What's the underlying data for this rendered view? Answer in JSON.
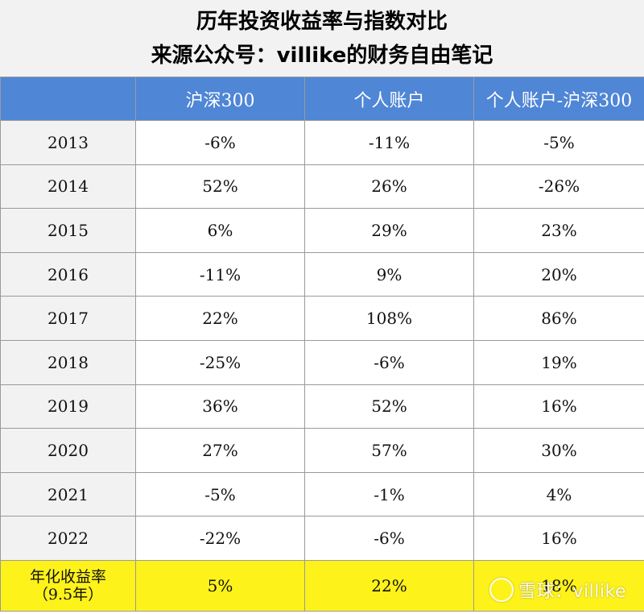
{
  "title": {
    "line1": "历年投资收益率与指数对比",
    "line2": "来源公众号：villike的财务自由笔记"
  },
  "chart_data": {
    "type": "table",
    "columns": [
      "",
      "沪深300",
      "个人账户",
      "个人账户-沪深300"
    ],
    "rows": [
      {
        "year": "2013",
        "hs300": "-6%",
        "personal": "-11%",
        "diff": "-5%"
      },
      {
        "year": "2014",
        "hs300": "52%",
        "personal": "26%",
        "diff": "-26%"
      },
      {
        "year": "2015",
        "hs300": "6%",
        "personal": "29%",
        "diff": "23%"
      },
      {
        "year": "2016",
        "hs300": "-11%",
        "personal": "9%",
        "diff": "20%"
      },
      {
        "year": "2017",
        "hs300": "22%",
        "personal": "108%",
        "diff": "86%"
      },
      {
        "year": "2018",
        "hs300": "-25%",
        "personal": "-6%",
        "diff": "19%"
      },
      {
        "year": "2019",
        "hs300": "36%",
        "personal": "52%",
        "diff": "16%"
      },
      {
        "year": "2020",
        "hs300": "27%",
        "personal": "57%",
        "diff": "30%"
      },
      {
        "year": "2021",
        "hs300": "-5%",
        "personal": "-1%",
        "diff": "4%"
      },
      {
        "year": "2022",
        "hs300": "-22%",
        "personal": "-6%",
        "diff": "16%"
      }
    ],
    "footer": {
      "label_line1": "年化收益率",
      "label_line2": "（9.5年）",
      "hs300": "5%",
      "personal": "22%",
      "diff": "18%"
    }
  },
  "watermark": {
    "text": "雪球：villike"
  },
  "colors": {
    "header_bg": "#4f86d6",
    "footer_bg": "#fdf21a",
    "year_col_bg": "#f2f2f2"
  }
}
